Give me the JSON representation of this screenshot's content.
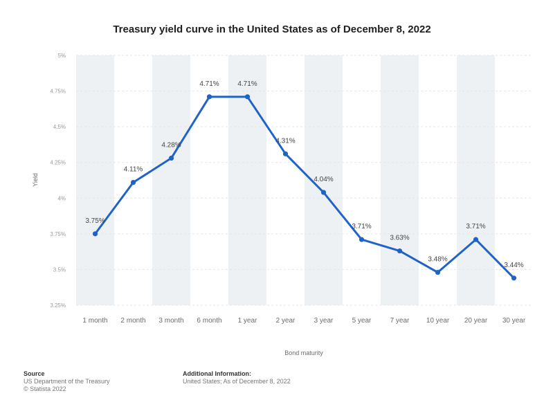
{
  "chart_data": {
    "type": "line",
    "title": "Treasury yield curve in the United States as of December 8, 2022",
    "xlabel": "Bond maturity",
    "ylabel": "Yield",
    "categories": [
      "1 month",
      "2 month",
      "3 month",
      "6 month",
      "1 year",
      "2 year",
      "3 year",
      "5 year",
      "7 year",
      "10 year",
      "20 year",
      "30 year"
    ],
    "values": [
      3.75,
      4.11,
      4.28,
      4.71,
      4.71,
      4.31,
      4.04,
      3.71,
      3.63,
      3.48,
      3.71,
      3.44
    ],
    "data_labels": [
      "3.75%",
      "4.11%",
      "4.28%",
      "4.71%",
      "4.71%",
      "4.31%",
      "4.04%",
      "3.71%",
      "3.63%",
      "3.48%",
      "3.71%",
      "3.44%"
    ],
    "y_ticks": [
      3.25,
      3.5,
      3.75,
      4,
      4.25,
      4.5,
      4.75,
      5
    ],
    "y_tick_labels": [
      "3.25%",
      "3.5%",
      "3.75%",
      "4%",
      "4.25%",
      "4.5%",
      "4.75%",
      "5%"
    ],
    "ylim": [
      3.25,
      5
    ],
    "grid": true,
    "legend": "none",
    "line_color": "#1f63c6"
  },
  "footer": {
    "source_heading": "Source",
    "source_line1": "US Department of the Treasury",
    "source_line2": "© Statista 2022",
    "info_heading": "Additional Information:",
    "info_line1": "United States; As of December 8, 2022"
  }
}
